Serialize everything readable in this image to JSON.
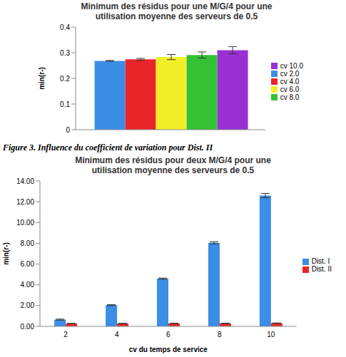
{
  "chart_data": [
    {
      "type": "bar",
      "title": "Minimum des résidus pour une M/G/4 pour une utilisation moyenne des serveurs de 0.5",
      "y_label": "min(r-)",
      "categories": [
        null
      ],
      "series": [
        {
          "name": "cv 2.0",
          "color": "#3a8ee6",
          "values": [
            0.268
          ],
          "errors": [
            0.002
          ]
        },
        {
          "name": "cv 4.0",
          "color": "#e8262a",
          "values": [
            0.274
          ],
          "errors": [
            0.004
          ]
        },
        {
          "name": "cv 6.0",
          "color": "#f2ee2a",
          "values": [
            0.283
          ],
          "errors": [
            0.01
          ]
        },
        {
          "name": "cv 8.0",
          "color": "#34c234",
          "values": [
            0.291
          ],
          "errors": [
            0.012
          ]
        },
        {
          "name": "cv 10.0",
          "color": "#9a30d4",
          "values": [
            0.31
          ],
          "errors": [
            0.014
          ]
        }
      ],
      "ylim": [
        0,
        0.4
      ],
      "yticks": [
        0,
        0.1,
        0.2,
        0.3,
        0.4
      ],
      "grid": false,
      "legend": "right"
    },
    {
      "type": "bar",
      "title": "Minimum des résidus pour deux M/G/4 pour une utilisation moyenne des serveurs de 0.5",
      "y_label": "min(r-)",
      "x_label": "cv du temps de service",
      "categories": [
        "2",
        "4",
        "6",
        "8",
        "10"
      ],
      "series": [
        {
          "name": "Dist. I",
          "color": "#3a8ee6",
          "values": [
            0.65,
            2.05,
            4.6,
            8.05,
            12.6
          ],
          "errors": [
            0.05,
            0.05,
            0.05,
            0.1,
            0.2
          ]
        },
        {
          "name": "Dist. II",
          "color": "#e8262a",
          "values": [
            0.27,
            0.27,
            0.28,
            0.29,
            0.31
          ],
          "errors": [
            0.02,
            0.02,
            0.02,
            0.02,
            0.02
          ]
        }
      ],
      "ylim": [
        0,
        14
      ],
      "yticks": [
        {
          "value": 0,
          "label": "0.00"
        },
        {
          "value": 2,
          "label": "2.00"
        },
        {
          "value": 4,
          "label": "4.00"
        },
        {
          "value": 6,
          "label": "6.00"
        },
        {
          "value": 8,
          "label": "8.00"
        },
        {
          "value": 10,
          "label": "10.00"
        },
        {
          "value": 12,
          "label": "12.00"
        },
        {
          "value": 14,
          "label": "14.00"
        }
      ],
      "grid": false,
      "legend": "right"
    }
  ],
  "caption": "Figure 3. Influence du coefficient de variation pour Dist. II"
}
